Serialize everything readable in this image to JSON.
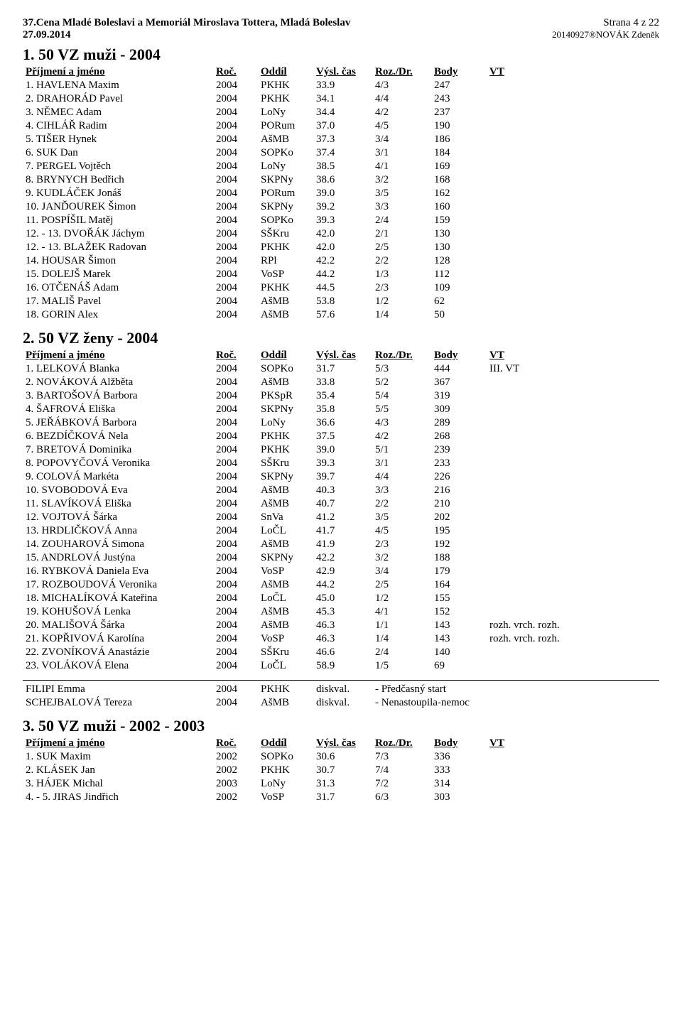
{
  "header": {
    "title_line1": "37.Cena Mladé Boleslavi a Memoriál Miroslava Tottera, Mladá Boleslav",
    "title_line2": "27.09.2014",
    "page": "Strana 4 z 22",
    "stamp": "20140927®NOVÁK Zdeněk"
  },
  "events": [
    {
      "title": "1. 50 VZ muži - 2004",
      "columns": {
        "name": "Příjmení a jméno",
        "roc": "Roč.",
        "oddil": "Oddíl",
        "cas": "Výsl. čas",
        "roz": "Roz./Dr.",
        "body": "Body",
        "vt": "VT"
      },
      "rows": [
        {
          "name": "1. HAVLENA Maxim",
          "roc": "2004",
          "oddil": "PKHK",
          "cas": "33.9",
          "roz": "4/3",
          "body": "247",
          "vt": ""
        },
        {
          "name": "2. DRAHORÁD Pavel",
          "roc": "2004",
          "oddil": "PKHK",
          "cas": "34.1",
          "roz": "4/4",
          "body": "243",
          "vt": ""
        },
        {
          "name": "3. NĚMEC Adam",
          "roc": "2004",
          "oddil": "LoNy",
          "cas": "34.4",
          "roz": "4/2",
          "body": "237",
          "vt": ""
        },
        {
          "name": "4. CIHLÁŘ Radim",
          "roc": "2004",
          "oddil": "PORum",
          "cas": "37.0",
          "roz": "4/5",
          "body": "190",
          "vt": ""
        },
        {
          "name": "5. TIŠER Hynek",
          "roc": "2004",
          "oddil": "AšMB",
          "cas": "37.3",
          "roz": "3/4",
          "body": "186",
          "vt": ""
        },
        {
          "name": "6. SUK Dan",
          "roc": "2004",
          "oddil": "SOPKo",
          "cas": "37.4",
          "roz": "3/1",
          "body": "184",
          "vt": ""
        },
        {
          "name": "7. PERGEL Vojtěch",
          "roc": "2004",
          "oddil": "LoNy",
          "cas": "38.5",
          "roz": "4/1",
          "body": "169",
          "vt": ""
        },
        {
          "name": "8. BRYNYCH Bedřich",
          "roc": "2004",
          "oddil": "SKPNy",
          "cas": "38.6",
          "roz": "3/2",
          "body": "168",
          "vt": ""
        },
        {
          "name": "9. KUDLÁČEK Jonáš",
          "roc": "2004",
          "oddil": "PORum",
          "cas": "39.0",
          "roz": "3/5",
          "body": "162",
          "vt": ""
        },
        {
          "name": "10. JANĎOUREK Šimon",
          "roc": "2004",
          "oddil": "SKPNy",
          "cas": "39.2",
          "roz": "3/3",
          "body": "160",
          "vt": ""
        },
        {
          "name": "11. POSPÍŠIL Matěj",
          "roc": "2004",
          "oddil": "SOPKo",
          "cas": "39.3",
          "roz": "2/4",
          "body": "159",
          "vt": ""
        },
        {
          "name": "12. - 13. DVOŘÁK Jáchym",
          "roc": "2004",
          "oddil": "SŠKru",
          "cas": "42.0",
          "roz": "2/1",
          "body": "130",
          "vt": ""
        },
        {
          "name": "12. - 13. BLAŽEK Radovan",
          "roc": "2004",
          "oddil": "PKHK",
          "cas": "42.0",
          "roz": "2/5",
          "body": "130",
          "vt": ""
        },
        {
          "name": "14. HOUSAR Šimon",
          "roc": "2004",
          "oddil": "RPl",
          "cas": "42.2",
          "roz": "2/2",
          "body": "128",
          "vt": ""
        },
        {
          "name": "15. DOLEJŠ Marek",
          "roc": "2004",
          "oddil": "VoSP",
          "cas": "44.2",
          "roz": "1/3",
          "body": "112",
          "vt": ""
        },
        {
          "name": "16. OTČENÁŠ Adam",
          "roc": "2004",
          "oddil": "PKHK",
          "cas": "44.5",
          "roz": "2/3",
          "body": "109",
          "vt": ""
        },
        {
          "name": "17. MALIŠ Pavel",
          "roc": "2004",
          "oddil": "AšMB",
          "cas": "53.8",
          "roz": "1/2",
          "body": "62",
          "vt": ""
        },
        {
          "name": "18. GORIN Alex",
          "roc": "2004",
          "oddil": "AšMB",
          "cas": "57.6",
          "roz": "1/4",
          "body": "50",
          "vt": ""
        }
      ]
    },
    {
      "title": "2. 50 VZ ženy - 2004",
      "columns": {
        "name": "Příjmení a jméno",
        "roc": "Roč.",
        "oddil": "Oddíl",
        "cas": "Výsl. čas",
        "roz": "Roz./Dr.",
        "body": "Body",
        "vt": "VT"
      },
      "rows": [
        {
          "name": "1. LELKOVÁ Blanka",
          "roc": "2004",
          "oddil": "SOPKo",
          "cas": "31.7",
          "roz": "5/3",
          "body": "444",
          "vt": "III. VT"
        },
        {
          "name": "2. NOVÁKOVÁ Alžběta",
          "roc": "2004",
          "oddil": "AšMB",
          "cas": "33.8",
          "roz": "5/2",
          "body": "367",
          "vt": ""
        },
        {
          "name": "3. BARTOŠOVÁ Barbora",
          "roc": "2004",
          "oddil": "PKSpR",
          "cas": "35.4",
          "roz": "5/4",
          "body": "319",
          "vt": ""
        },
        {
          "name": "4. ŠAFROVÁ Eliška",
          "roc": "2004",
          "oddil": "SKPNy",
          "cas": "35.8",
          "roz": "5/5",
          "body": "309",
          "vt": ""
        },
        {
          "name": "5. JEŘÁBKOVÁ Barbora",
          "roc": "2004",
          "oddil": "LoNy",
          "cas": "36.6",
          "roz": "4/3",
          "body": "289",
          "vt": ""
        },
        {
          "name": "6. BEZDÍČKOVÁ Nela",
          "roc": "2004",
          "oddil": "PKHK",
          "cas": "37.5",
          "roz": "4/2",
          "body": "268",
          "vt": ""
        },
        {
          "name": "7. BRETOVÁ Dominika",
          "roc": "2004",
          "oddil": "PKHK",
          "cas": "39.0",
          "roz": "5/1",
          "body": "239",
          "vt": ""
        },
        {
          "name": "8. POPOVYČOVÁ Veronika",
          "roc": "2004",
          "oddil": "SŠKru",
          "cas": "39.3",
          "roz": "3/1",
          "body": "233",
          "vt": ""
        },
        {
          "name": "9. COLOVÁ Markéta",
          "roc": "2004",
          "oddil": "SKPNy",
          "cas": "39.7",
          "roz": "4/4",
          "body": "226",
          "vt": ""
        },
        {
          "name": "10. SVOBODOVÁ Eva",
          "roc": "2004",
          "oddil": "AšMB",
          "cas": "40.3",
          "roz": "3/3",
          "body": "216",
          "vt": ""
        },
        {
          "name": "11. SLAVÍKOVÁ Eliška",
          "roc": "2004",
          "oddil": "AšMB",
          "cas": "40.7",
          "roz": "2/2",
          "body": "210",
          "vt": ""
        },
        {
          "name": "12. VOJTOVÁ Šárka",
          "roc": "2004",
          "oddil": "SnVa",
          "cas": "41.2",
          "roz": "3/5",
          "body": "202",
          "vt": ""
        },
        {
          "name": "13. HRDLIČKOVÁ Anna",
          "roc": "2004",
          "oddil": "LoČL",
          "cas": "41.7",
          "roz": "4/5",
          "body": "195",
          "vt": ""
        },
        {
          "name": "14. ZOUHAROVÁ Simona",
          "roc": "2004",
          "oddil": "AšMB",
          "cas": "41.9",
          "roz": "2/3",
          "body": "192",
          "vt": ""
        },
        {
          "name": "15. ANDRLOVÁ Justýna",
          "roc": "2004",
          "oddil": "SKPNy",
          "cas": "42.2",
          "roz": "3/2",
          "body": "188",
          "vt": ""
        },
        {
          "name": "16. RYBKOVÁ Daniela Eva",
          "roc": "2004",
          "oddil": "VoSP",
          "cas": "42.9",
          "roz": "3/4",
          "body": "179",
          "vt": ""
        },
        {
          "name": "17. ROZBOUDOVÁ Veronika",
          "roc": "2004",
          "oddil": "AšMB",
          "cas": "44.2",
          "roz": "2/5",
          "body": "164",
          "vt": ""
        },
        {
          "name": "18. MICHALÍKOVÁ Kateřina",
          "roc": "2004",
          "oddil": "LoČL",
          "cas": "45.0",
          "roz": "1/2",
          "body": "155",
          "vt": ""
        },
        {
          "name": "19. KOHUŠOVÁ Lenka",
          "roc": "2004",
          "oddil": "AšMB",
          "cas": "45.3",
          "roz": "4/1",
          "body": "152",
          "vt": ""
        },
        {
          "name": "20. MALIŠOVÁ Šárka",
          "roc": "2004",
          "oddil": "AšMB",
          "cas": "46.3",
          "roz": "1/1",
          "body": "143",
          "vt": "rozh. vrch. rozh."
        },
        {
          "name": "21. KOPŘIVOVÁ Karolína",
          "roc": "2004",
          "oddil": "VoSP",
          "cas": "46.3",
          "roz": "1/4",
          "body": "143",
          "vt": "rozh. vrch. rozh."
        },
        {
          "name": "22. ZVONÍKOVÁ Anastázie",
          "roc": "2004",
          "oddil": "SŠKru",
          "cas": "46.6",
          "roz": "2/4",
          "body": "140",
          "vt": ""
        },
        {
          "name": "23. VOLÁKOVÁ Elena",
          "roc": "2004",
          "oddil": "LoČL",
          "cas": "58.9",
          "roz": "1/5",
          "body": "69",
          "vt": ""
        }
      ],
      "dq": [
        {
          "name": "FILIPI Emma",
          "roc": "2004",
          "oddil": "PKHK",
          "cas": "diskval.",
          "note": "- Předčasný start"
        },
        {
          "name": "SCHEJBALOVÁ Tereza",
          "roc": "2004",
          "oddil": "AšMB",
          "cas": "diskval.",
          "note": "- Nenastoupila-nemoc"
        }
      ]
    },
    {
      "title": "3. 50 VZ muži - 2002 - 2003",
      "columns": {
        "name": "Příjmení a jméno",
        "roc": "Roč.",
        "oddil": "Oddíl",
        "cas": "Výsl. čas",
        "roz": "Roz./Dr.",
        "body": "Body",
        "vt": "VT"
      },
      "rows": [
        {
          "name": "1. SUK Maxim",
          "roc": "2002",
          "oddil": "SOPKo",
          "cas": "30.6",
          "roz": "7/3",
          "body": "336",
          "vt": ""
        },
        {
          "name": "2. KLÁSEK Jan",
          "roc": "2002",
          "oddil": "PKHK",
          "cas": "30.7",
          "roz": "7/4",
          "body": "333",
          "vt": ""
        },
        {
          "name": "3. HÁJEK Michal",
          "roc": "2003",
          "oddil": "LoNy",
          "cas": "31.3",
          "roz": "7/2",
          "body": "314",
          "vt": ""
        },
        {
          "name": "4. - 5. JIRAS Jindřich",
          "roc": "2002",
          "oddil": "VoSP",
          "cas": "31.7",
          "roz": "6/3",
          "body": "303",
          "vt": ""
        }
      ]
    }
  ]
}
